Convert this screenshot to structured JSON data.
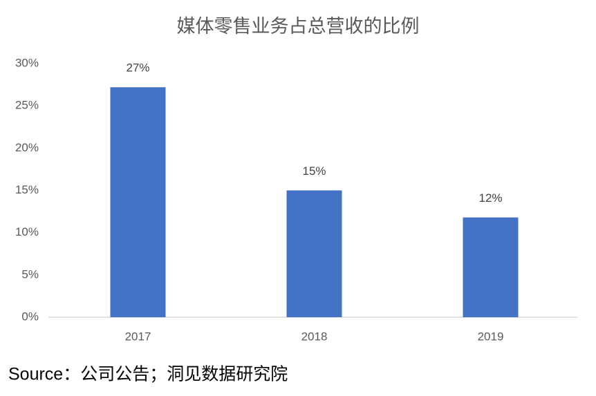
{
  "chart_data": {
    "type": "bar",
    "title": "媒体零售业务占总营收的比例",
    "categories": [
      "2017",
      "2018",
      "2019"
    ],
    "values": [
      27.2,
      15,
      11.8
    ],
    "value_labels": [
      "27%",
      "15%",
      "12%"
    ],
    "color": "#4472c4",
    "ylim": [
      0,
      30
    ],
    "yticks": [
      {
        "value": 0,
        "label": "0%"
      },
      {
        "value": 5,
        "label": "5%"
      },
      {
        "value": 10,
        "label": "10%"
      },
      {
        "value": 15,
        "label": "15%"
      },
      {
        "value": 20,
        "label": "20%"
      },
      {
        "value": 25,
        "label": "25%"
      },
      {
        "value": 30,
        "label": "30%"
      }
    ],
    "grid": false
  },
  "source": "Source：公司公告；洞见数据研究院"
}
